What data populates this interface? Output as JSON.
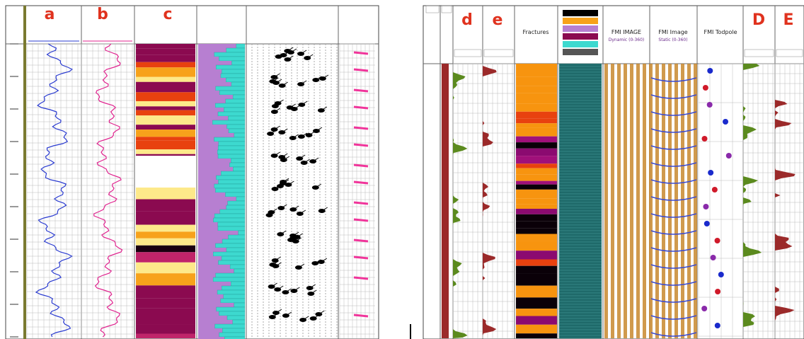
{
  "left": {
    "labels": [
      "a",
      "b",
      "c"
    ]
  },
  "right": {
    "labels": [
      "d",
      "e",
      "D",
      "E"
    ],
    "headers": [
      "Fractures",
      "FMI IMAGE",
      "FMI Image",
      "FMI Todpole"
    ],
    "subheaders": [
      "Dynamic (0-360)",
      "Static (0-360)"
    ]
  }
}
